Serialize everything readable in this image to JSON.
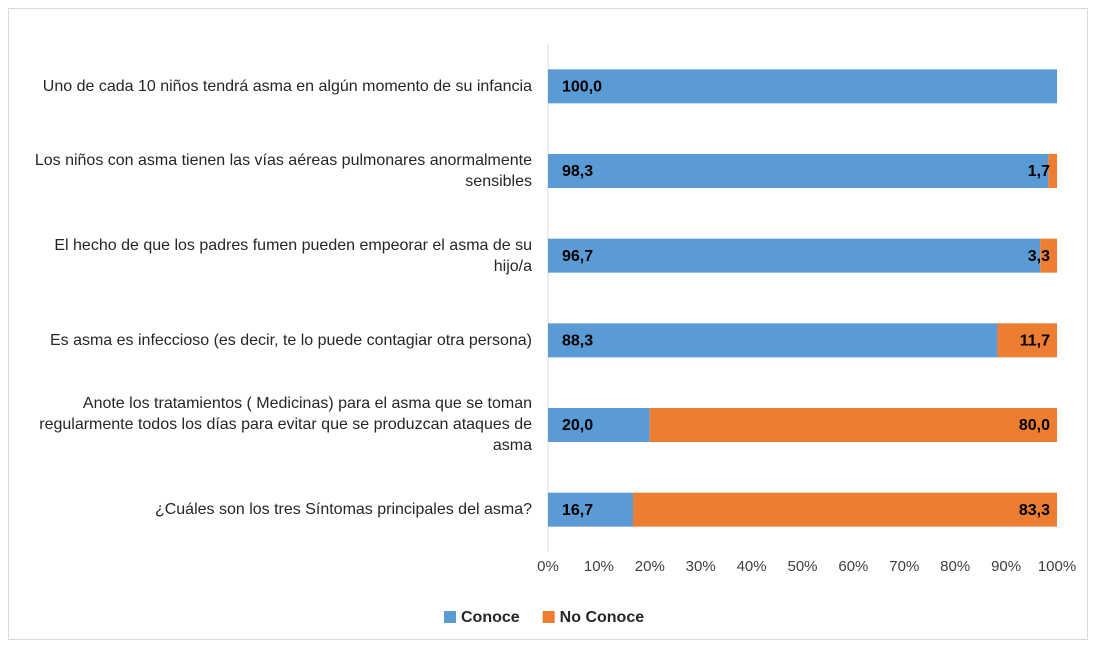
{
  "chart_data": {
    "type": "stacked-bar-horizontal",
    "categories": [
      "Uno de cada 10 niños tendrá asma en algún momento de su infancia",
      "Los niños con asma tienen las vías aéreas pulmonares anormalmente sensibles",
      "El hecho de que los padres fumen pueden empeorar el asma de su hijo/a",
      "Es asma es infeccioso (es decir, te lo puede contagiar otra persona)",
      "Anote los tratamientos ( Medicinas) para el asma que se toman regularmente todos los días para evitar que se produzcan ataques de asma",
      "¿Cuáles son los tres Síntomas principales del asma?"
    ],
    "series": [
      {
        "name": "Conoce",
        "color": "#5b9bd5",
        "values": [
          100,
          98.3,
          96.7,
          88.3,
          20,
          16.7
        ],
        "value_labels": [
          "100,0",
          "98,3",
          "96,7",
          "88,3",
          "20,0",
          "16,7"
        ]
      },
      {
        "name": "No Conoce",
        "color": "#ed7d31",
        "values": [
          0,
          1.7,
          3.3,
          11.7,
          80,
          83.3
        ],
        "value_labels": [
          null,
          "1,7",
          "3,3",
          "11,7",
          "80,0",
          "83,3"
        ]
      }
    ],
    "xlim": [
      0,
      100
    ],
    "xticks": [
      {
        "value": 0,
        "label": "0%"
      },
      {
        "value": 10,
        "label": "10%"
      },
      {
        "value": 20,
        "label": "20%"
      },
      {
        "value": 30,
        "label": "30%"
      },
      {
        "value": 40,
        "label": "40%"
      },
      {
        "value": 50,
        "label": "50%"
      },
      {
        "value": 60,
        "label": "60%"
      },
      {
        "value": 70,
        "label": "70%"
      },
      {
        "value": 80,
        "label": "80%"
      },
      {
        "value": 90,
        "label": "90%"
      },
      {
        "value": 100,
        "label": "100%"
      }
    ],
    "legend": "bottom"
  }
}
